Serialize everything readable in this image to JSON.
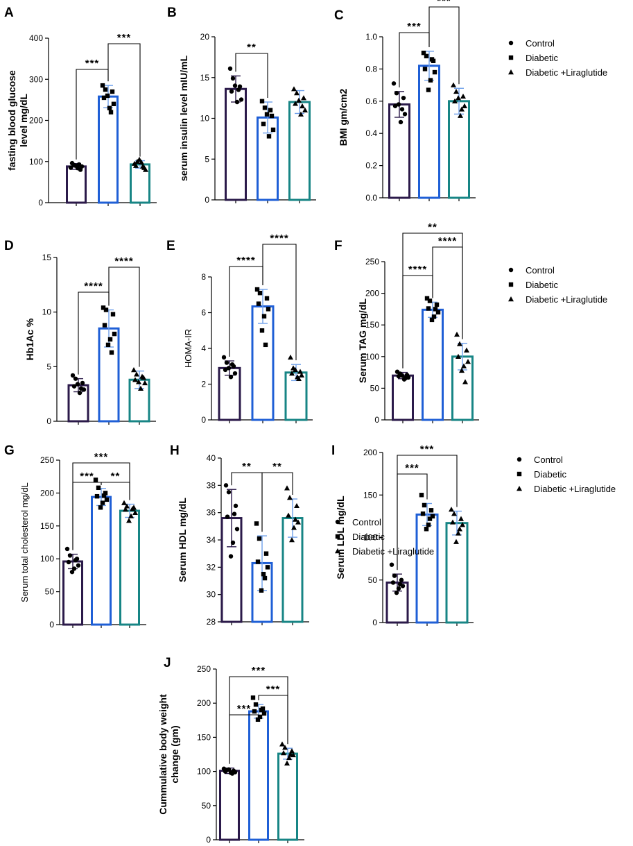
{
  "colors": {
    "control": "#2b1a4a",
    "diabetic": "#1f5fd6",
    "liraglutide": "#178585",
    "error_light": "#6fa0ea",
    "axis": "#000000"
  },
  "legend": {
    "entries": [
      {
        "label": "Control",
        "marker": "circle"
      },
      {
        "label": "Diabetic",
        "marker": "square"
      },
      {
        "label": "Diabetic +Liraglutide",
        "marker": "triangle"
      }
    ]
  },
  "chart_data": [
    {
      "panel": "A",
      "type": "bar",
      "ylabel_lines": [
        "fasting blood glucose",
        "level mg/dL"
      ],
      "ylim": [
        0,
        400
      ],
      "yticks": [
        0,
        100,
        200,
        300,
        400
      ],
      "yticklabels": [
        "0",
        "100",
        "200",
        "300",
        "400"
      ],
      "categories": [
        "Control",
        "Diabetic",
        "Diabetic +Liraglutide"
      ],
      "values": [
        88,
        258,
        93
      ],
      "errors": [
        7,
        27,
        9
      ],
      "points": [
        [
          85,
          92,
          80,
          96,
          88,
          84,
          90,
          93
        ],
        [
          285,
          275,
          270,
          255,
          240,
          230,
          260,
          220
        ],
        [
          95,
          100,
          85,
          90,
          80,
          98,
          105,
          88
        ]
      ],
      "brackets": [
        {
          "from": 0,
          "to": 1,
          "label": "***"
        },
        {
          "from": 1,
          "to": 2,
          "label": "***"
        }
      ]
    },
    {
      "panel": "B",
      "type": "bar",
      "ylabel_lines": [
        "serum insulin level mIU/mL"
      ],
      "ylim": [
        0,
        20
      ],
      "yticks": [
        0,
        5,
        10,
        15,
        20
      ],
      "yticklabels": [
        "0",
        "5",
        "10",
        "15",
        "20"
      ],
      "categories": [
        "Control",
        "Diabetic",
        "Diabetic +Liraglutide"
      ],
      "values": [
        13.6,
        10.1,
        12.0
      ],
      "errors": [
        1.6,
        1.9,
        1.4
      ],
      "points": [
        [
          16.1,
          14.9,
          13.9,
          13.3,
          12.3,
          12.0,
          14.0,
          13.5
        ],
        [
          12.1,
          11.3,
          10.3,
          9.3,
          8.6,
          7.8,
          10.5,
          11.0
        ],
        [
          13.6,
          13.1,
          12.5,
          11.8,
          11.0,
          10.5,
          12.2,
          11.5
        ]
      ],
      "brackets": [
        {
          "from": 0,
          "to": 1,
          "label": "**"
        }
      ]
    },
    {
      "panel": "C",
      "type": "bar",
      "ylabel_lines": [
        "BMI gm/cm2"
      ],
      "ylim": [
        0,
        1.0
      ],
      "yticks": [
        0,
        0.2,
        0.4,
        0.6,
        0.8,
        1.0
      ],
      "yticklabels": [
        "0.0",
        "0.2",
        "0.4",
        "0.6",
        "0.8",
        "1.0"
      ],
      "categories": [
        "Control",
        "Diabetic",
        "Diabetic +Liraglutide"
      ],
      "values": [
        0.58,
        0.82,
        0.6
      ],
      "errors": [
        0.08,
        0.09,
        0.08
      ],
      "points": [
        [
          0.71,
          0.65,
          0.62,
          0.57,
          0.52,
          0.47,
          0.58,
          0.55
        ],
        [
          0.9,
          0.88,
          0.85,
          0.8,
          0.78,
          0.73,
          0.67,
          0.86
        ],
        [
          0.7,
          0.66,
          0.63,
          0.6,
          0.57,
          0.51,
          0.62,
          0.55
        ]
      ],
      "brackets": [
        {
          "from": 0,
          "to": 1,
          "label": "***"
        },
        {
          "from": 1,
          "to": 2,
          "label": "***"
        }
      ]
    },
    {
      "panel": "D",
      "type": "bar",
      "ylabel_lines": [
        "Hb1Ac %"
      ],
      "ylim": [
        0,
        15
      ],
      "yticks": [
        0,
        5,
        10,
        15
      ],
      "yticklabels": [
        "0",
        "5",
        "10",
        "15"
      ],
      "categories": [
        "Control",
        "Diabetic",
        "Diabetic +Liraglutide"
      ],
      "values": [
        3.3,
        8.5,
        3.8
      ],
      "errors": [
        0.6,
        1.7,
        0.8
      ],
      "points": [
        [
          4.2,
          3.9,
          3.5,
          3.2,
          2.9,
          2.6,
          3.4,
          3.0
        ],
        [
          10.4,
          10.2,
          9.8,
          8.8,
          8.0,
          7.5,
          7.0,
          6.3
        ],
        [
          4.7,
          4.3,
          4.0,
          3.8,
          3.5,
          3.0,
          3.6,
          4.1
        ]
      ],
      "brackets": [
        {
          "from": 0,
          "to": 1,
          "label": "****"
        },
        {
          "from": 1,
          "to": 2,
          "label": "****"
        }
      ]
    },
    {
      "panel": "E",
      "type": "bar",
      "ylabel_lines": [
        "HOMA-IR"
      ],
      "ylim": [
        0,
        8
      ],
      "yticks": [
        0,
        2,
        4,
        6,
        8
      ],
      "yticklabels": [
        "0",
        "2",
        "4",
        "6",
        "8"
      ],
      "categories": [
        "Control",
        "Diabetic",
        "Diabetic +Liraglutide"
      ],
      "values": [
        2.9,
        6.35,
        2.65
      ],
      "errors": [
        0.4,
        0.95,
        0.45
      ],
      "points": [
        [
          3.5,
          3.2,
          3.0,
          2.8,
          2.6,
          2.4,
          2.9,
          3.1
        ],
        [
          7.3,
          7.1,
          6.8,
          6.5,
          6.2,
          5.8,
          5.0,
          4.2
        ],
        [
          3.5,
          2.9,
          2.7,
          2.6,
          2.5,
          2.4,
          2.8,
          2.3
        ]
      ],
      "brackets": [
        {
          "from": 0,
          "to": 1,
          "label": "****"
        },
        {
          "from": 1,
          "to": 2,
          "label": "****"
        }
      ]
    },
    {
      "panel": "F",
      "type": "bar",
      "ylabel_lines": [
        "Serum TAG mg/dL"
      ],
      "ylim": [
        0,
        250
      ],
      "yticks": [
        0,
        50,
        100,
        150,
        200,
        250
      ],
      "yticklabels": [
        "0",
        "50",
        "100",
        "150",
        "200",
        "250"
      ],
      "categories": [
        "Control",
        "Diabetic",
        "Diabetic +Liraglutide"
      ],
      "values": [
        70,
        174,
        100
      ],
      "errors": [
        5,
        12,
        21
      ],
      "points": [
        [
          76,
          73,
          71,
          69,
          67,
          64,
          70,
          66
        ],
        [
          192,
          188,
          182,
          176,
          170,
          163,
          158,
          175
        ],
        [
          135,
          120,
          110,
          100,
          92,
          85,
          78,
          60
        ]
      ],
      "brackets": [
        {
          "from": 0,
          "to": 1,
          "label": "****"
        },
        {
          "from": 1,
          "to": 2,
          "label": "****"
        },
        {
          "from": 0,
          "to": 2,
          "label": "**"
        }
      ]
    },
    {
      "panel": "G",
      "type": "bar",
      "ylabel_lines": [
        "Serum total cholesterol  mg/dL"
      ],
      "ylim": [
        0,
        250
      ],
      "yticks": [
        0,
        50,
        100,
        150,
        200,
        250
      ],
      "yticklabels": [
        "0",
        "50",
        "100",
        "150",
        "200",
        "250"
      ],
      "categories": [
        "Control",
        "Diabetic",
        "Diabetic +Liraglutide"
      ],
      "values": [
        96,
        194,
        173
      ],
      "errors": [
        11,
        13,
        10
      ],
      "points": [
        [
          115,
          105,
          100,
          95,
          90,
          85,
          80,
          98
        ],
        [
          220,
          208,
          200,
          195,
          190,
          185,
          178,
          196
        ],
        [
          185,
          180,
          178,
          175,
          170,
          165,
          158,
          176
        ]
      ],
      "brackets": [
        {
          "from": 0,
          "to": 1,
          "label": "***"
        },
        {
          "from": 1,
          "to": 2,
          "label": "**"
        },
        {
          "from": 0,
          "to": 2,
          "label": "***"
        }
      ]
    },
    {
      "panel": "H",
      "type": "bar",
      "ylabel_lines": [
        "Serum HDL mg/dL"
      ],
      "ylim": [
        28,
        40
      ],
      "yticks": [
        28,
        30,
        32,
        34,
        36,
        38,
        40
      ],
      "yticklabels": [
        "28",
        "30",
        "32",
        "34",
        "36",
        "38",
        "40"
      ],
      "categories": [
        "Control",
        "Diabetic",
        "Diabetic +Liraglutide"
      ],
      "values": [
        35.6,
        32.3,
        35.6
      ],
      "errors": [
        2.1,
        2.0,
        1.4
      ],
      "points": [
        [
          38.0,
          37.5,
          36.5,
          35.7,
          34.8,
          33.8,
          32.8,
          35.9
        ],
        [
          35.2,
          34.1,
          33.0,
          32.4,
          32.0,
          31.5,
          30.3,
          31.2
        ],
        [
          37.8,
          37.1,
          36.5,
          35.8,
          35.3,
          34.9,
          34.0,
          35.5
        ]
      ],
      "brackets": [
        {
          "from": 0,
          "to": 1,
          "label": "**"
        },
        {
          "from": 1,
          "to": 2,
          "label": "**"
        }
      ]
    },
    {
      "panel": "I",
      "type": "bar",
      "ylabel_lines": [
        "Serum LDL  mg/dL"
      ],
      "ylim": [
        0,
        200
      ],
      "yticks": [
        0,
        50,
        100,
        150,
        200
      ],
      "yticklabels": [
        "0",
        "50",
        "100",
        "150",
        "200"
      ],
      "categories": [
        "Control",
        "Diabetic",
        "Diabetic +Liraglutide"
      ],
      "values": [
        47,
        127,
        117
      ],
      "errors": [
        10,
        13,
        14
      ],
      "points": [
        [
          68,
          55,
          50,
          47,
          43,
          40,
          35,
          45
        ],
        [
          150,
          138,
          132,
          128,
          125,
          115,
          110,
          122
        ],
        [
          133,
          128,
          122,
          118,
          115,
          105,
          95,
          110
        ]
      ],
      "brackets": [
        {
          "from": 0,
          "to": 1,
          "label": "***"
        },
        {
          "from": 0,
          "to": 2,
          "label": "***"
        }
      ]
    },
    {
      "panel": "J",
      "type": "bar",
      "ylabel_lines": [
        "Cummulative body weight",
        "change (gm)"
      ],
      "ylim": [
        0,
        250
      ],
      "yticks": [
        0,
        50,
        100,
        150,
        200,
        250
      ],
      "yticklabels": [
        "0",
        "50",
        "100",
        "150",
        "200",
        "250"
      ],
      "categories": [
        "Control",
        "Diabetic",
        "Diabetic +Liraglutide"
      ],
      "values": [
        101,
        188,
        126
      ],
      "errors": [
        4,
        10,
        8
      ],
      "points": [
        [
          104,
          102,
          101,
          100,
          99,
          98,
          103,
          97
        ],
        [
          208,
          198,
          192,
          188,
          185,
          180,
          176,
          190
        ],
        [
          140,
          135,
          130,
          127,
          124,
          120,
          112,
          125
        ]
      ],
      "brackets": [
        {
          "from": 0,
          "to": 1,
          "label": "***"
        },
        {
          "from": 1,
          "to": 2,
          "label": "***"
        },
        {
          "from": 0,
          "to": 2,
          "label": "***"
        }
      ]
    }
  ]
}
